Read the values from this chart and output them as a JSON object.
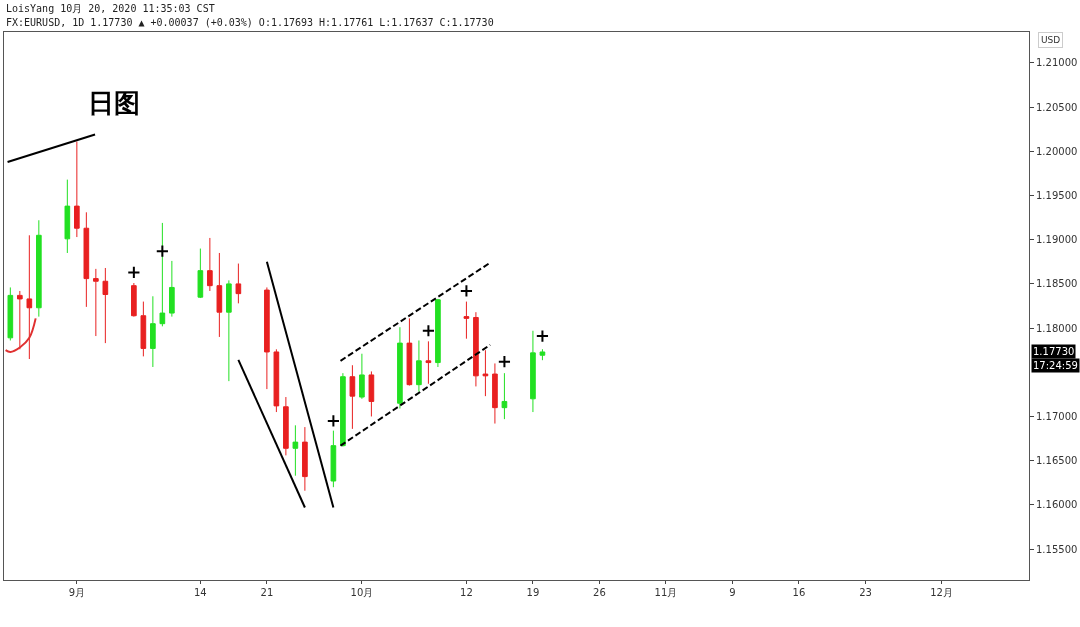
{
  "chart_data": {
    "type": "candlestick",
    "title": "LoisYang 10月 20, 2020 11:35:03 CST",
    "subtitle": "FX:EURUSD, 1D 1.17730 ▲ +0.00037 (+0.03%) O:1.17693 H:1.17761 L:1.17637 C:1.17730",
    "ylabel": "USD",
    "x": [
      "2020-08-25",
      "2020-08-26",
      "2020-08-27",
      "2020-08-28",
      "2020-08-31",
      "2020-09-01",
      "2020-09-02",
      "2020-09-03",
      "2020-09-04",
      "2020-09-07",
      "2020-09-08",
      "2020-09-09",
      "2020-09-10",
      "2020-09-11",
      "2020-09-14",
      "2020-09-15",
      "2020-09-16",
      "2020-09-17",
      "2020-09-18",
      "2020-09-21",
      "2020-09-22",
      "2020-09-23",
      "2020-09-24",
      "2020-09-25",
      "2020-09-28",
      "2020-09-29",
      "2020-09-30",
      "2020-10-01",
      "2020-10-02",
      "2020-10-05",
      "2020-10-06",
      "2020-10-07",
      "2020-10-08",
      "2020-10-09",
      "2020-10-12",
      "2020-10-13",
      "2020-10-14",
      "2020-10-15",
      "2020-10-16",
      "2020-10-19",
      "2020-10-20"
    ],
    "ohlc": [
      [
        1.1789,
        1.1846,
        1.1786,
        1.1837
      ],
      [
        1.1837,
        1.1842,
        1.1776,
        1.1833
      ],
      [
        1.1833,
        1.1905,
        1.1765,
        1.1823
      ],
      [
        1.1823,
        1.1922,
        1.1813,
        1.1905
      ],
      [
        1.1901,
        1.1968,
        1.1885,
        1.1938
      ],
      [
        1.1938,
        1.2011,
        1.1903,
        1.1913
      ],
      [
        1.1913,
        1.1931,
        1.1824,
        1.1856
      ],
      [
        1.1856,
        1.1867,
        1.1791,
        1.1853
      ],
      [
        1.1853,
        1.1868,
        1.1783,
        1.1838
      ],
      [
        1.1848,
        1.1851,
        1.1813,
        1.1814
      ],
      [
        1.1814,
        1.183,
        1.1768,
        1.1777
      ],
      [
        1.1777,
        1.1836,
        1.1756,
        1.1805
      ],
      [
        1.1805,
        1.1919,
        1.1802,
        1.1817
      ],
      [
        1.1817,
        1.1876,
        1.1813,
        1.1846
      ],
      [
        1.1835,
        1.189,
        1.1834,
        1.1865
      ],
      [
        1.1865,
        1.1902,
        1.1842,
        1.1848
      ],
      [
        1.1848,
        1.1885,
        1.179,
        1.1818
      ],
      [
        1.1818,
        1.1854,
        1.174,
        1.185
      ],
      [
        1.185,
        1.1873,
        1.1828,
        1.1839
      ],
      [
        1.1843,
        1.1846,
        1.1731,
        1.1773
      ],
      [
        1.1773,
        1.1776,
        1.1705,
        1.1712
      ],
      [
        1.1711,
        1.1722,
        1.1656,
        1.1664
      ],
      [
        1.1664,
        1.169,
        1.1633,
        1.1671
      ],
      [
        1.1671,
        1.1688,
        1.1616,
        1.1632
      ],
      [
        1.1627,
        1.1684,
        1.162,
        1.1667
      ],
      [
        1.1667,
        1.1749,
        1.1666,
        1.1745
      ],
      [
        1.1745,
        1.1758,
        1.1686,
        1.1723
      ],
      [
        1.1722,
        1.1771,
        1.172,
        1.1747
      ],
      [
        1.1747,
        1.1751,
        1.17,
        1.1717
      ],
      [
        1.1715,
        1.1801,
        1.1709,
        1.1783
      ],
      [
        1.1783,
        1.1811,
        1.1735,
        1.1736
      ],
      [
        1.1736,
        1.1786,
        1.1728,
        1.1763
      ],
      [
        1.1763,
        1.1785,
        1.1737,
        1.1761
      ],
      [
        1.1761,
        1.1833,
        1.1756,
        1.1832
      ],
      [
        1.1813,
        1.183,
        1.1788,
        1.1811
      ],
      [
        1.1812,
        1.1818,
        1.1734,
        1.1746
      ],
      [
        1.1748,
        1.1775,
        1.1723,
        1.1746
      ],
      [
        1.1748,
        1.176,
        1.1692,
        1.171
      ],
      [
        1.171,
        1.1749,
        1.1697,
        1.1717
      ],
      [
        1.172,
        1.1797,
        1.1705,
        1.1772
      ],
      [
        1.17693,
        1.17761,
        1.17637,
        1.1773
      ]
    ],
    "colors": [
      "#22e022",
      "#e82020",
      "#e82020",
      "#22e022",
      "#22e022",
      "#e82020",
      "#e82020",
      "#e82020",
      "#e82020",
      "#e82020",
      "#e82020",
      "#22e022",
      "#22e022",
      "#22e022",
      "#22e022",
      "#e82020",
      "#e82020",
      "#22e022",
      "#e82020",
      "#e82020",
      "#e82020",
      "#e82020",
      "#22e022",
      "#e82020",
      "#22e022",
      "#22e022",
      "#e82020",
      "#22e022",
      "#e82020",
      "#22e022",
      "#e82020",
      "#22e022",
      "#e82020",
      "#22e022",
      "#e82020",
      "#e82020",
      "#e82020",
      "#e82020",
      "#22e022",
      "#22e022",
      "#22e022"
    ],
    "series": [
      {
        "type": "line",
        "color": "#000000",
        "line_style": "solid",
        "x": [
          "2020-08-24T17:00",
          "2020-09-02T22:00"
        ],
        "values": [
          1.1988,
          1.2019
        ]
      },
      {
        "type": "line",
        "color": "#000000",
        "line_style": "solid",
        "x": [
          "2020-09-21",
          "2020-09-28"
        ],
        "values": [
          1.1875,
          1.1597
        ]
      },
      {
        "type": "line",
        "color": "#000000",
        "line_style": "solid",
        "x": [
          "2020-09-18",
          "2020-09-25"
        ],
        "values": [
          1.1764,
          1.1597
        ]
      },
      {
        "type": "line",
        "color": "#000000",
        "line_style": "dashed",
        "x": [
          "2020-09-28T18:00",
          "2020-10-14T12:00"
        ],
        "values": [
          1.1763,
          1.1874
        ]
      },
      {
        "type": "line",
        "color": "#000000",
        "line_style": "dashed",
        "x": [
          "2020-09-28T18:00",
          "2020-10-14T12:00"
        ],
        "values": [
          1.1667,
          1.1781
        ]
      },
      {
        "type": "line",
        "color": "#e03030",
        "line_style": "solid",
        "x": [
          "2020-08-24T12:00",
          "2020-08-25",
          "2020-08-26",
          "2020-08-27",
          "2020-08-27T16:00"
        ],
        "values": [
          1.1775,
          1.1773,
          1.1778,
          1.1789,
          1.1811
        ]
      },
      {
        "type": "scatter",
        "color": "#000000",
        "marker": "cross",
        "x": [
          "2020-09-07",
          "2020-09-10",
          "2020-09-28",
          "2020-10-08",
          "2020-10-12",
          "2020-10-16",
          "2020-10-20"
        ],
        "values": [
          1.1863,
          1.1887,
          1.1695,
          1.1797,
          1.1842,
          1.1762,
          1.1791
        ]
      }
    ],
    "annotations": [
      "日图",
      "17:24:59",
      "1.17730"
    ],
    "xlim": [
      "2020-08-24T08:00",
      "2020-12-10T05:00"
    ],
    "xticks": [
      {
        "value": "2020-09-01",
        "label": "9月"
      },
      {
        "value": "2020-09-14",
        "label": "14"
      },
      {
        "value": "2020-09-21",
        "label": "21"
      },
      {
        "value": "2020-10-01",
        "label": "10月"
      },
      {
        "value": "2020-10-12",
        "label": "12"
      },
      {
        "value": "2020-10-19",
        "label": "19"
      },
      {
        "value": "2020-10-26",
        "label": "26"
      },
      {
        "value": "2020-11-02",
        "label": "11月"
      },
      {
        "value": "2020-11-09",
        "label": "9"
      },
      {
        "value": "2020-11-16",
        "label": "16"
      },
      {
        "value": "2020-11-23",
        "label": "23"
      },
      {
        "value": "2020-12-01",
        "label": "12月"
      }
    ],
    "ylim": [
      1.1515,
      1.2135
    ],
    "yticks": [
      {
        "value": 1.155,
        "label": "1.15500"
      },
      {
        "value": 1.16,
        "label": "1.16000"
      },
      {
        "value": 1.165,
        "label": "1.16500"
      },
      {
        "value": 1.17,
        "label": "1.17000"
      },
      {
        "value": 1.18,
        "label": "1.18000"
      },
      {
        "value": 1.185,
        "label": "1.18500"
      },
      {
        "value": 1.19,
        "label": "1.19000"
      },
      {
        "value": 1.195,
        "label": "1.19500"
      },
      {
        "value": 1.2,
        "label": "1.20000"
      },
      {
        "value": 1.205,
        "label": "1.20500"
      },
      {
        "value": 1.21,
        "label": "1.21000"
      }
    ],
    "grid": false
  }
}
